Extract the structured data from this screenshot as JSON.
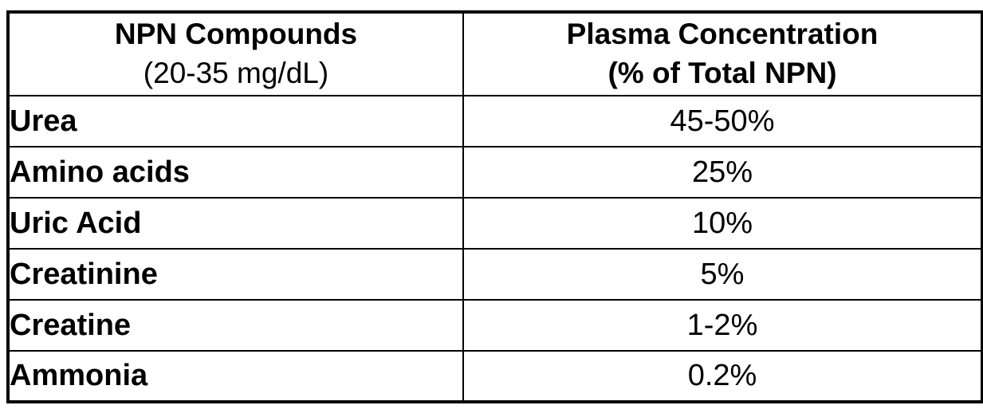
{
  "chart_data": {
    "type": "table",
    "title": "",
    "columns": [
      "NPN Compounds (20-35 mg/dL)",
      "Plasma Concentration (% of Total NPN)"
    ],
    "rows": [
      [
        "Urea",
        "45-50%"
      ],
      [
        "Amino acids",
        "25%"
      ],
      [
        "Uric Acid",
        "10%"
      ],
      [
        "Creatinine",
        "5%"
      ],
      [
        "Creatine",
        "1-2%"
      ],
      [
        "Ammonia",
        "0.2%"
      ]
    ]
  },
  "table": {
    "header": {
      "col1_line1": "NPN Compounds",
      "col1_line2": "(20-35 mg/dL)",
      "col2_line1": "Plasma Concentration",
      "col2_line2": "(% of Total NPN)"
    },
    "rows": [
      {
        "compound": "Urea",
        "value": "45-50%"
      },
      {
        "compound": "Amino acids",
        "value": "25%"
      },
      {
        "compound": "Uric Acid",
        "value": "10%"
      },
      {
        "compound": "Creatinine",
        "value": "5%"
      },
      {
        "compound": "Creatine",
        "value": "1-2%"
      },
      {
        "compound": "Ammonia",
        "value": "0.2%"
      }
    ]
  },
  "colors": {
    "border": "#000000",
    "text": "#000000",
    "background": "#ffffff"
  }
}
